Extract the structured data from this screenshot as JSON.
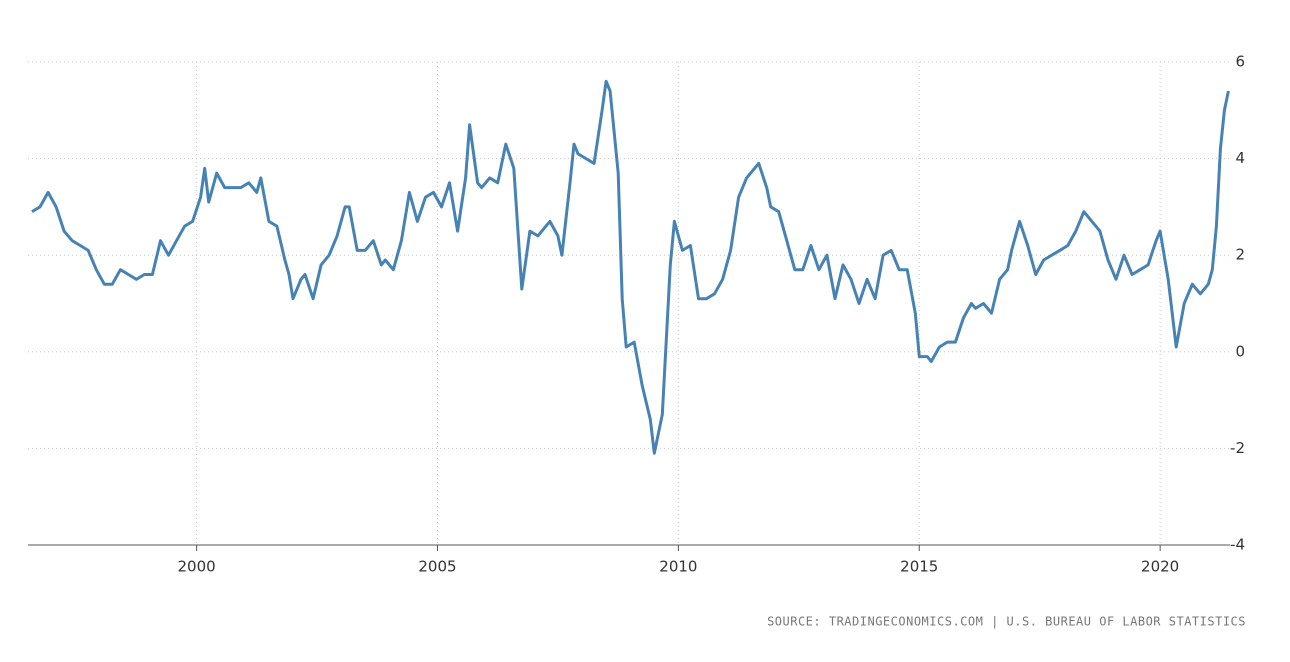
{
  "chart_data": {
    "type": "line",
    "source": "SOURCE: TRADINGECONOMICS.COM | U.S. BUREAU OF LABOR STATISTICS",
    "x": [
      1996.583,
      1996.75,
      1996.917,
      1997.083,
      1997.25,
      1997.417,
      1997.583,
      1997.75,
      1997.917,
      1998.083,
      1998.25,
      1998.417,
      1998.583,
      1998.75,
      1998.917,
      1999.083,
      1999.25,
      1999.417,
      1999.583,
      1999.75,
      1999.917,
      2000.083,
      2000.167,
      2000.25,
      2000.417,
      2000.583,
      2000.75,
      2000.917,
      2001.083,
      2001.25,
      2001.333,
      2001.5,
      2001.667,
      2001.833,
      2001.917,
      2002.0,
      2002.167,
      2002.25,
      2002.417,
      2002.583,
      2002.75,
      2002.917,
      2003.083,
      2003.167,
      2003.333,
      2003.5,
      2003.667,
      2003.833,
      2003.917,
      2004.083,
      2004.25,
      2004.417,
      2004.583,
      2004.75,
      2004.917,
      2005.083,
      2005.25,
      2005.417,
      2005.583,
      2005.667,
      2005.833,
      2005.917,
      2006.083,
      2006.25,
      2006.417,
      2006.583,
      2006.75,
      2006.917,
      2007.083,
      2007.25,
      2007.333,
      2007.5,
      2007.583,
      2007.75,
      2007.833,
      2007.917,
      2008.083,
      2008.25,
      2008.417,
      2008.5,
      2008.583,
      2008.75,
      2008.833,
      2008.917,
      2009.083,
      2009.25,
      2009.417,
      2009.5,
      2009.667,
      2009.833,
      2009.917,
      2010.083,
      2010.25,
      2010.417,
      2010.583,
      2010.75,
      2010.917,
      2011.083,
      2011.25,
      2011.417,
      2011.583,
      2011.667,
      2011.833,
      2011.917,
      2012.083,
      2012.25,
      2012.417,
      2012.583,
      2012.75,
      2012.917,
      2013.083,
      2013.25,
      2013.417,
      2013.583,
      2013.75,
      2013.917,
      2014.083,
      2014.25,
      2014.417,
      2014.583,
      2014.75,
      2014.917,
      2015.0,
      2015.167,
      2015.25,
      2015.417,
      2015.583,
      2015.75,
      2015.917,
      2016.083,
      2016.167,
      2016.333,
      2016.5,
      2016.667,
      2016.833,
      2016.917,
      2017.083,
      2017.25,
      2017.417,
      2017.583,
      2017.75,
      2017.917,
      2018.083,
      2018.25,
      2018.417,
      2018.583,
      2018.75,
      2018.917,
      2019.083,
      2019.25,
      2019.417,
      2019.583,
      2019.75,
      2019.917,
      2020.0,
      2020.167,
      2020.333,
      2020.5,
      2020.667,
      2020.833,
      2021.0,
      2021.083,
      2021.167,
      2021.25,
      2021.333,
      2021.417
    ],
    "series": [
      {
        "color": "#4682b4",
        "values": [
          2.9,
          3.0,
          3.3,
          3.0,
          2.5,
          2.3,
          2.2,
          2.1,
          1.7,
          1.4,
          1.4,
          1.7,
          1.6,
          1.5,
          1.6,
          1.6,
          2.3,
          2.0,
          2.3,
          2.6,
          2.7,
          3.2,
          3.8,
          3.1,
          3.7,
          3.4,
          3.4,
          3.4,
          3.5,
          3.3,
          3.6,
          2.7,
          2.6,
          1.9,
          1.6,
          1.1,
          1.5,
          1.6,
          1.1,
          1.8,
          2.0,
          2.4,
          3.0,
          3.0,
          2.1,
          2.1,
          2.3,
          1.8,
          1.9,
          1.7,
          2.3,
          3.3,
          2.7,
          3.2,
          3.3,
          3.0,
          3.5,
          2.5,
          3.6,
          4.7,
          3.5,
          3.4,
          3.6,
          3.5,
          4.3,
          3.8,
          1.3,
          2.5,
          2.4,
          2.6,
          2.7,
          2.4,
          2.0,
          3.5,
          4.3,
          4.1,
          4.0,
          3.9,
          5.0,
          5.6,
          5.4,
          3.7,
          1.1,
          0.1,
          0.2,
          -0.7,
          -1.4,
          -2.1,
          -1.3,
          1.8,
          2.7,
          2.1,
          2.2,
          1.1,
          1.1,
          1.2,
          1.5,
          2.1,
          3.2,
          3.6,
          3.8,
          3.9,
          3.4,
          3.0,
          2.9,
          2.3,
          1.7,
          1.7,
          2.2,
          1.7,
          2.0,
          1.1,
          1.8,
          1.5,
          1.0,
          1.5,
          1.1,
          2.0,
          2.1,
          1.7,
          1.7,
          0.8,
          -0.1,
          -0.1,
          -0.2,
          0.1,
          0.2,
          0.2,
          0.7,
          1.0,
          0.9,
          1.0,
          0.8,
          1.5,
          1.7,
          2.1,
          2.7,
          2.2,
          1.6,
          1.9,
          2.0,
          2.1,
          2.2,
          2.5,
          2.9,
          2.7,
          2.5,
          1.9,
          1.5,
          2.0,
          1.6,
          1.7,
          1.8,
          2.3,
          2.5,
          1.5,
          0.1,
          1.0,
          1.4,
          1.2,
          1.4,
          1.7,
          2.6,
          4.2,
          5.0,
          5.4
        ]
      }
    ],
    "xlim": [
      1996.5,
      2021.45
    ],
    "xticks": [
      2000,
      2005,
      2010,
      2015,
      2020
    ],
    "ylim": [
      -4,
      6
    ],
    "yticks": [
      -4,
      -2,
      0,
      2,
      4,
      6
    ],
    "grid": true
  }
}
